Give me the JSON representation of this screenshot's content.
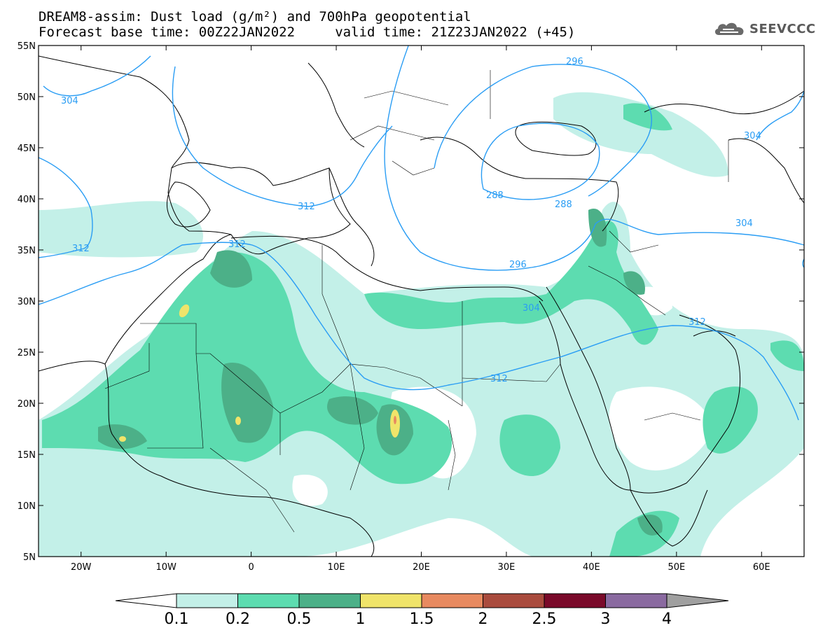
{
  "header": {
    "title_line1": "DREAM8-assim: Dust load (g/m²) and 700hPa geopotential",
    "title_line2": "Forecast base time: 00Z22JAN2022     valid time: 21Z23JAN2022 (+45)"
  },
  "logo": {
    "icon": "cloud-icon",
    "text": "SEEVCCC"
  },
  "map": {
    "lon_range": [
      -25,
      65
    ],
    "lat_range": [
      5,
      55
    ],
    "lat_ticks": [
      "55N",
      "50N",
      "45N",
      "40N",
      "35N",
      "30N",
      "25N",
      "20N",
      "15N",
      "10N",
      "5N"
    ],
    "lon_ticks": [
      "20W",
      "10W",
      "0",
      "10E",
      "20E",
      "30E",
      "40E",
      "50E",
      "60E"
    ],
    "contour_labels": [
      "304",
      "312",
      "312",
      "312",
      "312",
      "296",
      "288",
      "288",
      "296",
      "304",
      "304",
      "312",
      "304"
    ],
    "colors": {
      "contour": "#2a9df4",
      "level_0_1": "#c3f0e8",
      "level_0_2": "#5ddcb0",
      "level_0_5": "#4cb088",
      "level_1": "#f0e46a",
      "level_1_5": "#e88a60"
    }
  },
  "colorbar": {
    "labels": [
      "0.1",
      "0.2",
      "0.5",
      "1",
      "1.5",
      "2",
      "2.5",
      "3",
      "4"
    ],
    "colors": [
      "#c3f0e8",
      "#5ddcb0",
      "#4cb088",
      "#f0e46a",
      "#e88a60",
      "#aa4c3e",
      "#7a0a2a",
      "#8a6aa0",
      "#a0a0a0"
    ]
  }
}
